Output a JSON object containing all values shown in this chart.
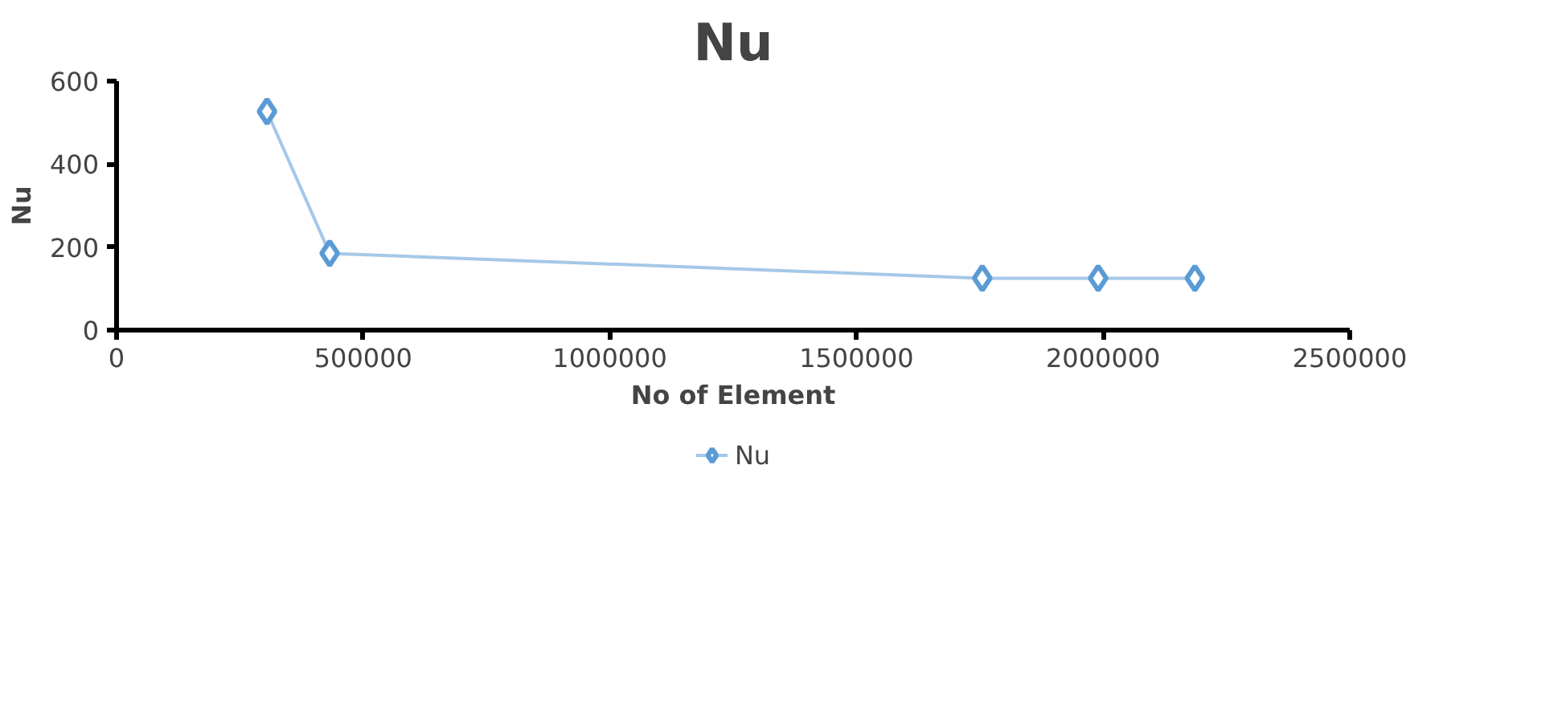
{
  "chart_data": {
    "type": "line",
    "title": "Nu",
    "xlabel": "No of Element",
    "ylabel": "Nu",
    "x": [
      305000,
      432000,
      1755000,
      1990000,
      2186000
    ],
    "series": [
      {
        "name": "Nu",
        "color": "#5b9bd5",
        "values": [
          527,
          185,
          125,
          125,
          125
        ]
      }
    ],
    "xlim": [
      0,
      2500000
    ],
    "xticks": [
      0,
      500000,
      1000000,
      1500000,
      2000000,
      2500000
    ],
    "ylim": [
      0,
      600
    ],
    "yticks": [
      0,
      200,
      400,
      600
    ],
    "grid": false,
    "legend": "bottom",
    "marker": "diamond",
    "line_style": "solid"
  }
}
